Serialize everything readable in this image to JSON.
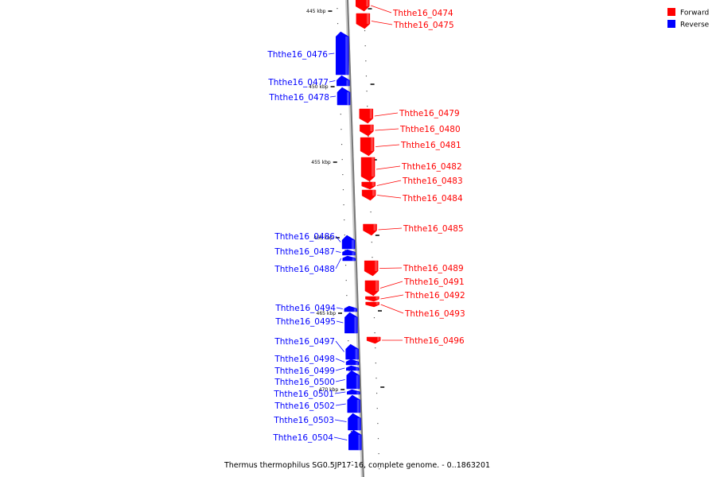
{
  "caption": "Thermus thermophilus SG0.5JP17-16, complete genome. - 0..1863201",
  "colors": {
    "forward": "#ff0000",
    "reverse": "#0000ff",
    "backbone": "#888888"
  },
  "legend": [
    {
      "label": "Forward",
      "color": "#ff0000"
    },
    {
      "label": "Reverse",
      "color": "#0000ff"
    }
  ],
  "ticks": [
    {
      "label": "445 kbp"
    },
    {
      "label": "450 kbp"
    },
    {
      "label": "455 kbp"
    },
    {
      "label": "460 kbp"
    },
    {
      "label": "465 kbp"
    },
    {
      "label": "470 kbp"
    }
  ],
  "genes": [
    {
      "name": "Ththe16_0474",
      "strand": "forward"
    },
    {
      "name": "Ththe16_0475",
      "strand": "forward"
    },
    {
      "name": "Ththe16_0476",
      "strand": "reverse"
    },
    {
      "name": "Ththe16_0477",
      "strand": "reverse"
    },
    {
      "name": "Ththe16_0478",
      "strand": "reverse"
    },
    {
      "name": "Ththe16_0479",
      "strand": "forward"
    },
    {
      "name": "Ththe16_0480",
      "strand": "forward"
    },
    {
      "name": "Ththe16_0481",
      "strand": "forward"
    },
    {
      "name": "Ththe16_0482",
      "strand": "forward"
    },
    {
      "name": "Ththe16_0483",
      "strand": "forward"
    },
    {
      "name": "Ththe16_0484",
      "strand": "forward"
    },
    {
      "name": "Ththe16_0485",
      "strand": "forward"
    },
    {
      "name": "Ththe16_0486",
      "strand": "reverse"
    },
    {
      "name": "Ththe16_0487",
      "strand": "reverse"
    },
    {
      "name": "Ththe16_0488",
      "strand": "reverse"
    },
    {
      "name": "Ththe16_0489",
      "strand": "forward"
    },
    {
      "name": "Ththe16_0491",
      "strand": "forward"
    },
    {
      "name": "Ththe16_0492",
      "strand": "forward"
    },
    {
      "name": "Ththe16_0493",
      "strand": "forward"
    },
    {
      "name": "Ththe16_0494",
      "strand": "reverse"
    },
    {
      "name": "Ththe16_0495",
      "strand": "reverse"
    },
    {
      "name": "Ththe16_0496",
      "strand": "forward"
    },
    {
      "name": "Ththe16_0497",
      "strand": "reverse"
    },
    {
      "name": "Ththe16_0498",
      "strand": "reverse"
    },
    {
      "name": "Ththe16_0499",
      "strand": "reverse"
    },
    {
      "name": "Ththe16_0500",
      "strand": "reverse"
    },
    {
      "name": "Ththe16_0501",
      "strand": "reverse"
    },
    {
      "name": "Ththe16_0502",
      "strand": "reverse"
    },
    {
      "name": "Ththe16_0503",
      "strand": "reverse"
    },
    {
      "name": "Ththe16_0504",
      "strand": "reverse"
    }
  ]
}
